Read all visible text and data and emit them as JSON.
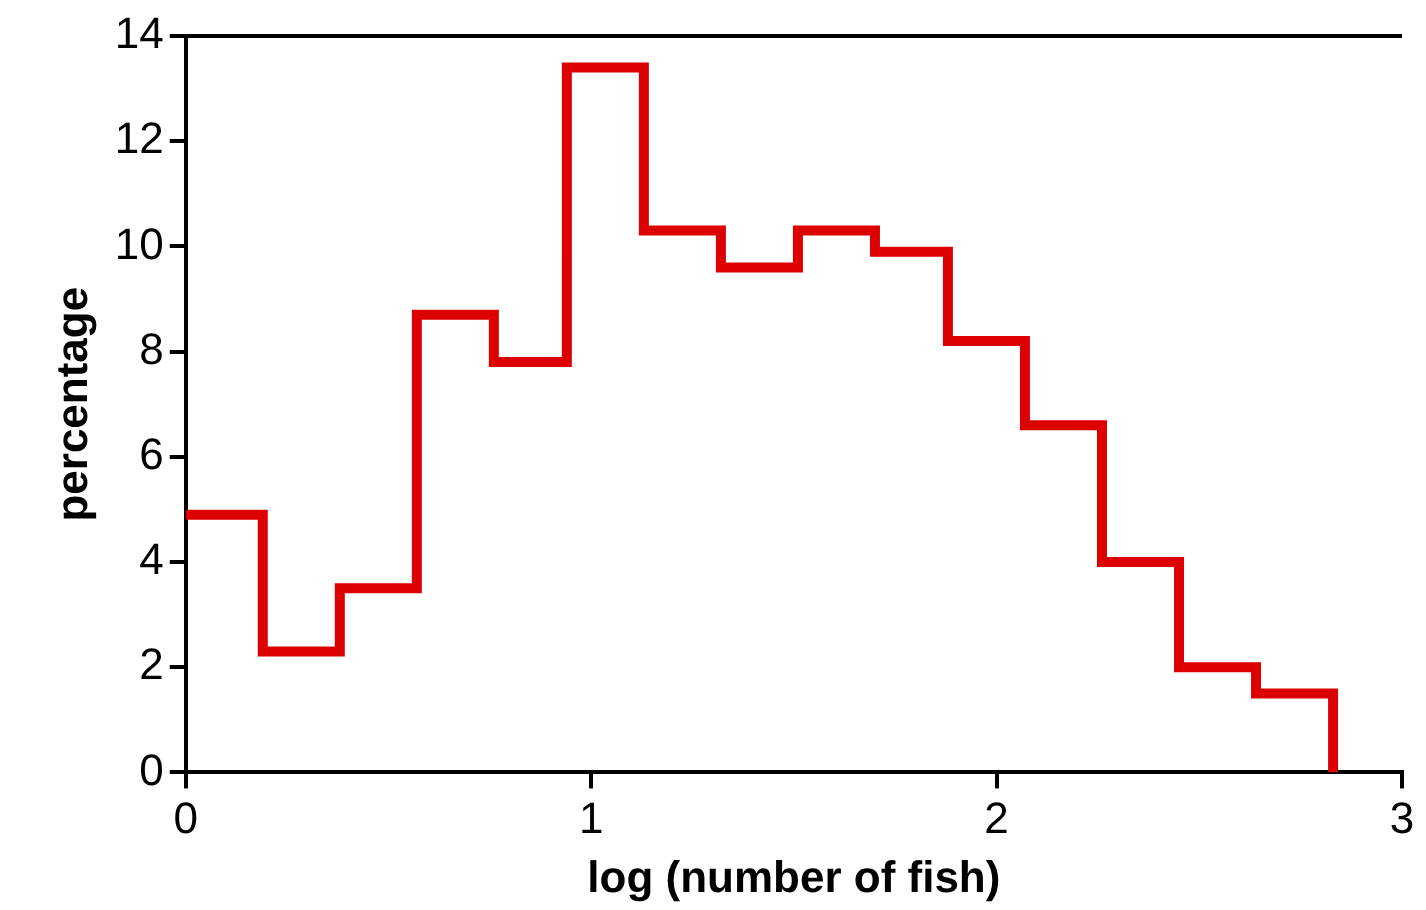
{
  "chart_data": {
    "type": "histogram",
    "xlabel": "log (number of fish)",
    "ylabel": "percentage",
    "bins": [
      0,
      0.19,
      0.38,
      0.57,
      0.76,
      0.94,
      1.13,
      1.32,
      1.51,
      1.7,
      1.88,
      2.07,
      2.26,
      2.45,
      2.64,
      2.83
    ],
    "values": [
      4.9,
      2.3,
      3.5,
      8.7,
      7.8,
      13.4,
      10.3,
      9.6,
      10.3,
      9.9,
      8.2,
      6.6,
      4.0,
      2.0,
      1.5
    ],
    "color": "#dd0000",
    "xlim": [
      0,
      3
    ],
    "xticks": [
      0,
      1,
      2,
      3
    ],
    "ylim": [
      0,
      14
    ],
    "yticks": [
      0,
      2,
      4,
      6,
      8,
      10,
      12,
      14
    ],
    "grid": false
  }
}
